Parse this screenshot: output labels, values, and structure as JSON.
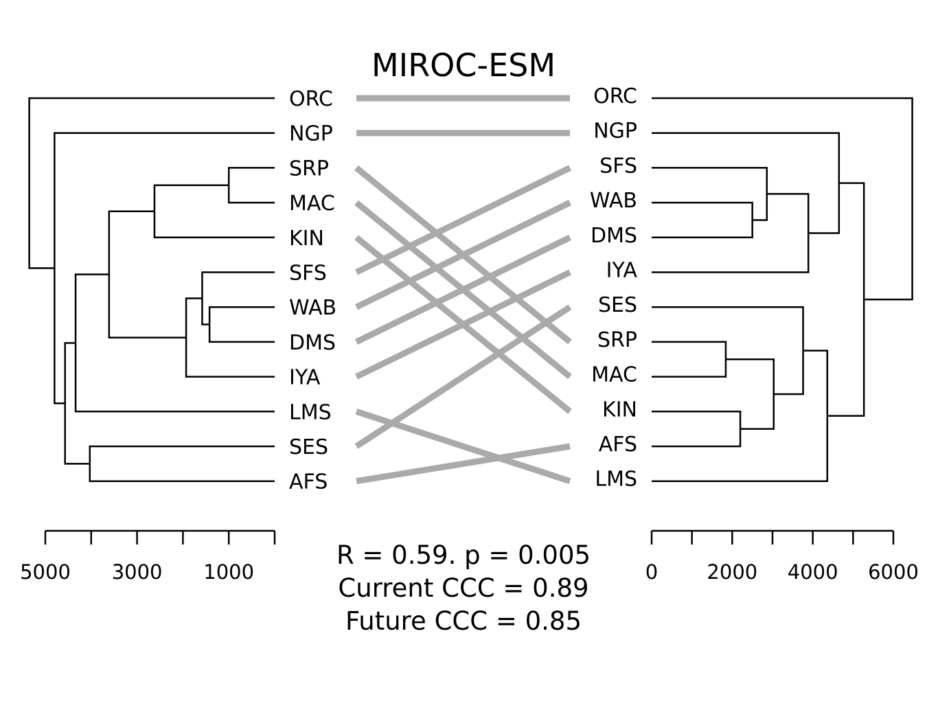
{
  "chart_data": {
    "type": "tanglegram",
    "title": "MIROC-ESM",
    "left_dendrogram": {
      "labels": [
        "ORC",
        "NGP",
        "SRP",
        "MAC",
        "KIN",
        "SFS",
        "WAB",
        "DMS",
        "IYA",
        "LMS",
        "SES",
        "AFS"
      ],
      "axis_ticks": [
        5000,
        4000,
        3000,
        2000,
        1000,
        0
      ],
      "axis_tick_labels": [
        "5000",
        "3000",
        "1000"
      ],
      "axis_range": [
        5000,
        0
      ],
      "merges": [
        {
          "a": "SRP",
          "b": "MAC",
          "height": 1000
        },
        {
          "a": "WAB",
          "b": "DMS",
          "height": 1420
        },
        {
          "a": "SFS",
          "b": "WAB+DMS",
          "height": 1580
        },
        {
          "a": "SRP+MAC",
          "b": "KIN",
          "height": 2620
        },
        {
          "a": "SFS+WAB+DMS",
          "b": "IYA",
          "height": 1930
        },
        {
          "a": "SRP+MAC+KIN",
          "b": "SFS+WAB+DMS+IYA",
          "height": 3610
        },
        {
          "a": "SES",
          "b": "AFS",
          "height": 4030
        },
        {
          "a": "SRP..IYA",
          "b": "LMS",
          "height": 4340
        },
        {
          "a": "SRP..LMS",
          "b": "SES+AFS",
          "height": 4570
        },
        {
          "a": "NGP",
          "b": "SRP..AFS",
          "height": 4800
        },
        {
          "a": "ORC",
          "b": "NGP..AFS",
          "height": 5350
        }
      ]
    },
    "right_dendrogram": {
      "labels": [
        "ORC",
        "NGP",
        "SFS",
        "WAB",
        "DMS",
        "IYA",
        "SES",
        "SRP",
        "MAC",
        "KIN",
        "AFS",
        "LMS"
      ],
      "axis_ticks": [
        0,
        1000,
        2000,
        3000,
        4000,
        5000,
        6000
      ],
      "axis_tick_labels": [
        "0",
        "2000",
        "4000",
        "6000"
      ],
      "axis_range": [
        0,
        6000
      ],
      "merges": [
        {
          "a": "WAB",
          "b": "DMS",
          "height": 2500
        },
        {
          "a": "SFS",
          "b": "WAB+DMS",
          "height": 2860
        },
        {
          "a": "SFS+WAB+DMS",
          "b": "IYA",
          "height": 3890
        },
        {
          "a": "NGP",
          "b": "SFS..IYA",
          "height": 4650
        },
        {
          "a": "SRP",
          "b": "MAC",
          "height": 1840
        },
        {
          "a": "KIN",
          "b": "AFS",
          "height": 2200
        },
        {
          "a": "SRP+MAC",
          "b": "KIN+AFS",
          "height": 3030
        },
        {
          "a": "SES",
          "b": "SRP..AFS",
          "height": 3760
        },
        {
          "a": "SES..AFS",
          "b": "LMS",
          "height": 4360
        },
        {
          "a": "NGP..IYA",
          "b": "SES..LMS",
          "height": 5270
        },
        {
          "a": "ORC",
          "b": "NGP..LMS",
          "height": 6470
        }
      ]
    },
    "connector_color": "#aaaaaa",
    "stats": [
      "R = 0.59. p = 0.005",
      "Current CCC = 0.89",
      "Future CCC = 0.85"
    ]
  }
}
